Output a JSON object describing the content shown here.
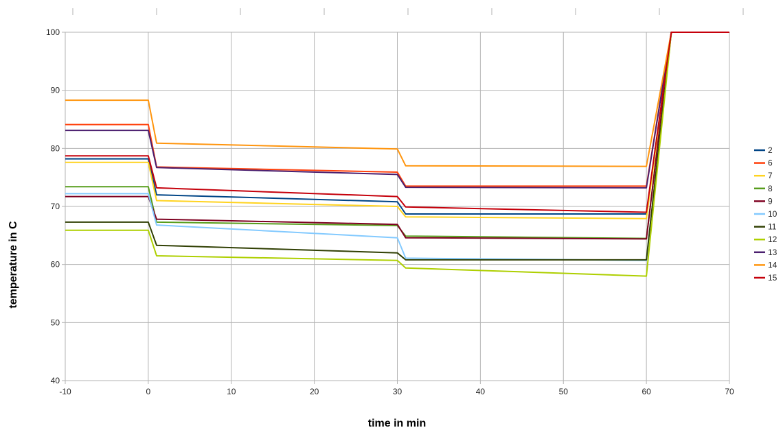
{
  "chart_data": {
    "type": "line",
    "title": "",
    "xlabel": "time in min",
    "ylabel": "temperature in C",
    "xlim": [
      -10,
      70
    ],
    "ylim": [
      40,
      100
    ],
    "x_ticks": [
      -10,
      0,
      10,
      20,
      30,
      40,
      50,
      60,
      70
    ],
    "y_ticks": [
      40,
      50,
      60,
      70,
      80,
      90,
      100
    ],
    "grid": "horizontal and vertical",
    "legend": "right",
    "x": [
      -10,
      0,
      1,
      30,
      31,
      60,
      63,
      70
    ],
    "series": [
      {
        "name": "2",
        "color": "#004586",
        "values": [
          78.2,
          78.2,
          72.0,
          70.8,
          68.7,
          68.7,
          100,
          100
        ]
      },
      {
        "name": "6",
        "color": "#ff420e",
        "values": [
          84.1,
          84.1,
          76.8,
          75.9,
          73.5,
          73.5,
          100,
          100
        ]
      },
      {
        "name": "7",
        "color": "#ffd320",
        "values": [
          77.6,
          77.6,
          71.0,
          70.0,
          68.2,
          67.9,
          100,
          100
        ]
      },
      {
        "name": "8",
        "color": "#579d1c",
        "values": [
          73.4,
          73.4,
          67.3,
          66.7,
          64.9,
          64.5,
          100,
          100
        ]
      },
      {
        "name": "9",
        "color": "#7e0021",
        "values": [
          71.7,
          71.7,
          67.8,
          66.9,
          64.6,
          64.4,
          100,
          100
        ]
      },
      {
        "name": "10",
        "color": "#83caff",
        "values": [
          72.2,
          72.2,
          66.8,
          64.6,
          61.1,
          60.7,
          100,
          100
        ]
      },
      {
        "name": "11",
        "color": "#314004",
        "values": [
          67.3,
          67.3,
          63.3,
          62.0,
          60.8,
          60.8,
          100,
          100
        ]
      },
      {
        "name": "12",
        "color": "#aecf00",
        "values": [
          65.9,
          65.9,
          61.5,
          60.7,
          59.4,
          58.0,
          100,
          100
        ]
      },
      {
        "name": "13",
        "color": "#4b1f6f",
        "values": [
          83.1,
          83.1,
          76.7,
          75.5,
          73.3,
          73.2,
          100,
          100
        ]
      },
      {
        "name": "14",
        "color": "#ff950e",
        "values": [
          88.3,
          88.3,
          80.9,
          79.9,
          77.0,
          76.9,
          100,
          100
        ]
      },
      {
        "name": "15",
        "color": "#c5000b",
        "values": [
          78.7,
          78.7,
          73.2,
          71.7,
          69.9,
          69.0,
          100,
          100
        ]
      }
    ]
  }
}
